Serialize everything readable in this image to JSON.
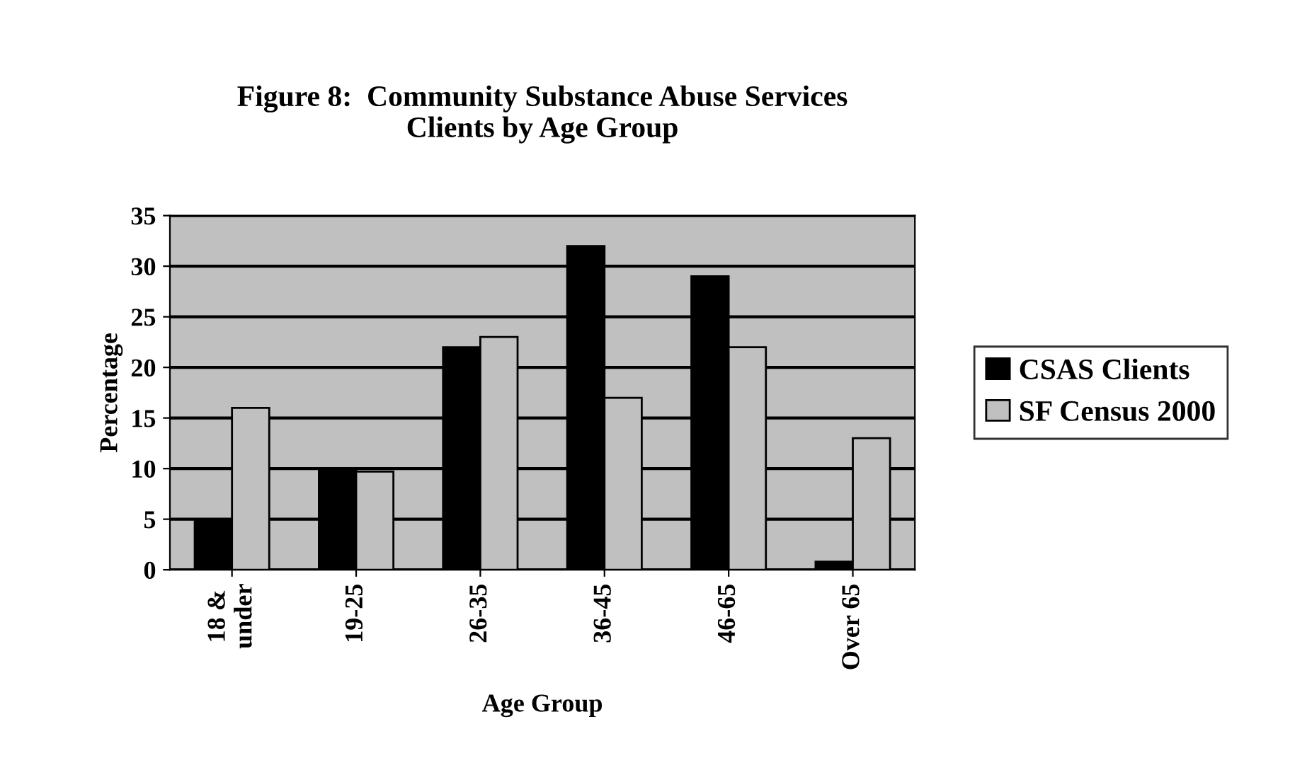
{
  "chart_data": {
    "type": "bar",
    "title": "Figure 8:  Community Substance Abuse Services\nClients by Age Group",
    "xlabel": "Age Group",
    "ylabel": "Percentage",
    "categories": [
      "18 &\nunder",
      "19-25",
      "26-35",
      "36-45",
      "46-65",
      "Over 65"
    ],
    "series": [
      {
        "name": "CSAS Clients",
        "color": "#000000",
        "values": [
          5,
          10,
          22,
          32,
          29,
          0.8
        ]
      },
      {
        "name": "SF Census 2000",
        "color": "#c0c0c0",
        "values": [
          16,
          9.7,
          23,
          17,
          22,
          13
        ]
      }
    ],
    "ylim": [
      0,
      35
    ],
    "yticks": [
      0,
      5,
      10,
      15,
      20,
      25,
      30,
      35
    ],
    "grid": "y",
    "legend": "right"
  }
}
